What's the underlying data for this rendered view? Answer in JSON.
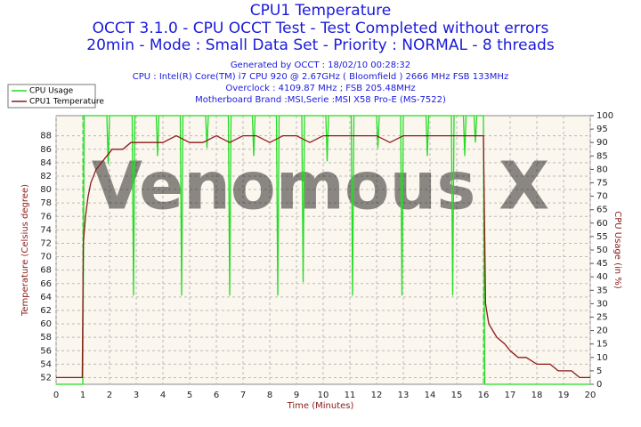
{
  "chart_data": {
    "type": "line",
    "title": "CPU1 Temperature",
    "subtitle": [
      "OCCT 3.1.0 - CPU OCCT Test - Test Completed without errors",
      "20min - Mode : Small Data Set - Priority : NORMAL - 8 threads"
    ],
    "info": [
      "Generated by OCCT : 18/02/10 00:28:32",
      "CPU : Intel(R) Core(TM) i7 CPU 920 @ 2.67GHz ( Bloomfield ) 2666 MHz FSB 133MHz",
      "Overclock : 4109.87 MHz ; FSB 205.48MHz",
      "Motherboard Brand :MSI,Serie :MSI X58 Pro-E (MS-7522)"
    ],
    "watermark": "Venomous X",
    "x_label": "Time (Minutes)",
    "y_label": "Temperature (Celsius degree)",
    "y2_label": "CPU Usage (in %)",
    "xlim": [
      0,
      20
    ],
    "xticks": [
      0,
      1,
      2,
      3,
      4,
      5,
      6,
      7,
      8,
      9,
      10,
      11,
      12,
      13,
      14,
      15,
      16,
      17,
      18,
      19,
      20
    ],
    "ylim": [
      51,
      91
    ],
    "yticks": [
      52,
      54,
      56,
      58,
      60,
      62,
      64,
      66,
      68,
      70,
      72,
      74,
      76,
      78,
      80,
      82,
      84,
      86,
      88
    ],
    "y2lim": [
      0,
      100
    ],
    "y2ticks": [
      0,
      5,
      10,
      15,
      20,
      25,
      30,
      35,
      40,
      45,
      50,
      55,
      60,
      65,
      70,
      75,
      80,
      85,
      90,
      95,
      100
    ],
    "markers": [
      1,
      16
    ],
    "grid": true,
    "legend": "top-left",
    "series": [
      {
        "name": "CPU Usage",
        "color": "#22dd22",
        "axis": "y2",
        "x": [
          0,
          1,
          1.05,
          1.9,
          1.95,
          2,
          2.85,
          2.9,
          2.95,
          3.75,
          3.8,
          3.85,
          4.65,
          4.7,
          4.75,
          5.6,
          5.65,
          5.7,
          6.45,
          6.5,
          6.55,
          7.35,
          7.4,
          7.45,
          8.25,
          8.3,
          8.35,
          9.2,
          9.25,
          9.3,
          10.1,
          10.15,
          10.2,
          11.05,
          11.1,
          11.15,
          12,
          12.05,
          12.1,
          12.9,
          12.95,
          13,
          13.85,
          13.9,
          13.95,
          14.8,
          14.85,
          14.9,
          15.25,
          15.3,
          15.35,
          15.65,
          15.7,
          15.75,
          16,
          16.05,
          20
        ],
        "values": [
          0,
          0,
          100,
          100,
          82,
          100,
          100,
          33,
          100,
          100,
          85,
          100,
          100,
          33,
          100,
          100,
          88,
          100,
          100,
          33,
          100,
          100,
          85,
          100,
          100,
          33,
          100,
          100,
          38,
          100,
          100,
          83,
          100,
          100,
          33,
          100,
          100,
          88,
          100,
          100,
          33,
          100,
          100,
          85,
          100,
          100,
          33,
          100,
          100,
          85,
          100,
          100,
          90,
          100,
          100,
          0,
          0
        ]
      },
      {
        "name": "CPU1 Temperature",
        "color": "#8b1a1a",
        "axis": "y",
        "x": [
          0,
          0.98,
          1.02,
          1.1,
          1.2,
          1.3,
          1.5,
          1.7,
          1.9,
          2.1,
          2.5,
          2.8,
          3,
          3.5,
          4,
          4.5,
          5,
          5.5,
          6,
          6.5,
          7,
          7.5,
          8,
          8.5,
          9,
          9.5,
          10,
          10.5,
          11,
          11.5,
          12,
          12.5,
          13,
          13.5,
          14,
          14.5,
          15,
          15.5,
          16,
          16.08,
          16.2,
          16.5,
          16.8,
          17,
          17.3,
          17.6,
          18,
          18.5,
          18.8,
          19,
          19.3,
          19.6,
          20
        ],
        "values": [
          52,
          52,
          72,
          76,
          79,
          81,
          83,
          84,
          85,
          86,
          86,
          87,
          87,
          87,
          87,
          88,
          87,
          87,
          88,
          87,
          88,
          88,
          87,
          88,
          88,
          87,
          88,
          88,
          88,
          88,
          88,
          87,
          88,
          88,
          88,
          88,
          88,
          88,
          88,
          63,
          60,
          58,
          57,
          56,
          55,
          55,
          54,
          54,
          53,
          53,
          53,
          52,
          52
        ]
      }
    ]
  }
}
